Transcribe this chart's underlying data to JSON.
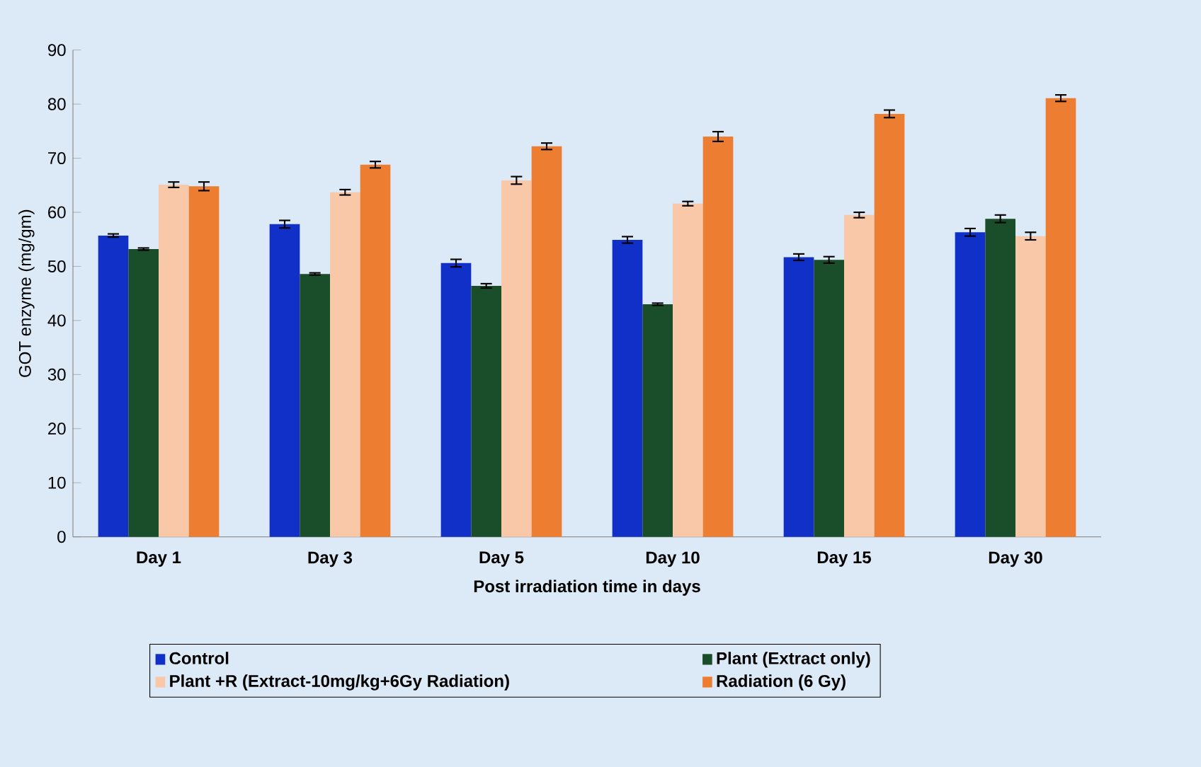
{
  "chart_data": {
    "type": "bar",
    "xlabel": "Post irradiation time in days",
    "ylabel": "GOT enzyme (mg/gm)",
    "categories": [
      "Day 1",
      "Day 3",
      "Day 5",
      "Day 10",
      "Day 15",
      "Day 30"
    ],
    "series": [
      {
        "name": "Control",
        "color": "#1030c8",
        "values": [
          55.7,
          57.8,
          50.6,
          54.9,
          51.7,
          56.3
        ],
        "errors": [
          0.3,
          0.7,
          0.7,
          0.6,
          0.6,
          0.7
        ]
      },
      {
        "name": "Plant (Extract only)",
        "color": "#1a4d2a",
        "values": [
          53.2,
          48.6,
          46.4,
          43.0,
          51.2,
          58.8
        ],
        "errors": [
          0.2,
          0.2,
          0.4,
          0.2,
          0.6,
          0.7
        ]
      },
      {
        "name": "Plant +R (Extract-10mg/kg+6Gy Radiation)",
        "color": "#f8c8a8",
        "values": [
          65.1,
          63.7,
          65.9,
          61.6,
          59.5,
          55.6
        ],
        "errors": [
          0.5,
          0.5,
          0.7,
          0.4,
          0.5,
          0.7
        ]
      },
      {
        "name": "Radiation (6 Gy)",
        "color": "#ed7d31",
        "values": [
          64.8,
          68.8,
          72.2,
          74.0,
          78.2,
          81.1
        ],
        "errors": [
          0.8,
          0.6,
          0.6,
          0.9,
          0.7,
          0.6
        ]
      }
    ],
    "ylim": [
      0,
      90
    ],
    "yticks": [
      0,
      10,
      20,
      30,
      40,
      50,
      60,
      70,
      80,
      90
    ],
    "grid": false,
    "legend": "bottom"
  }
}
